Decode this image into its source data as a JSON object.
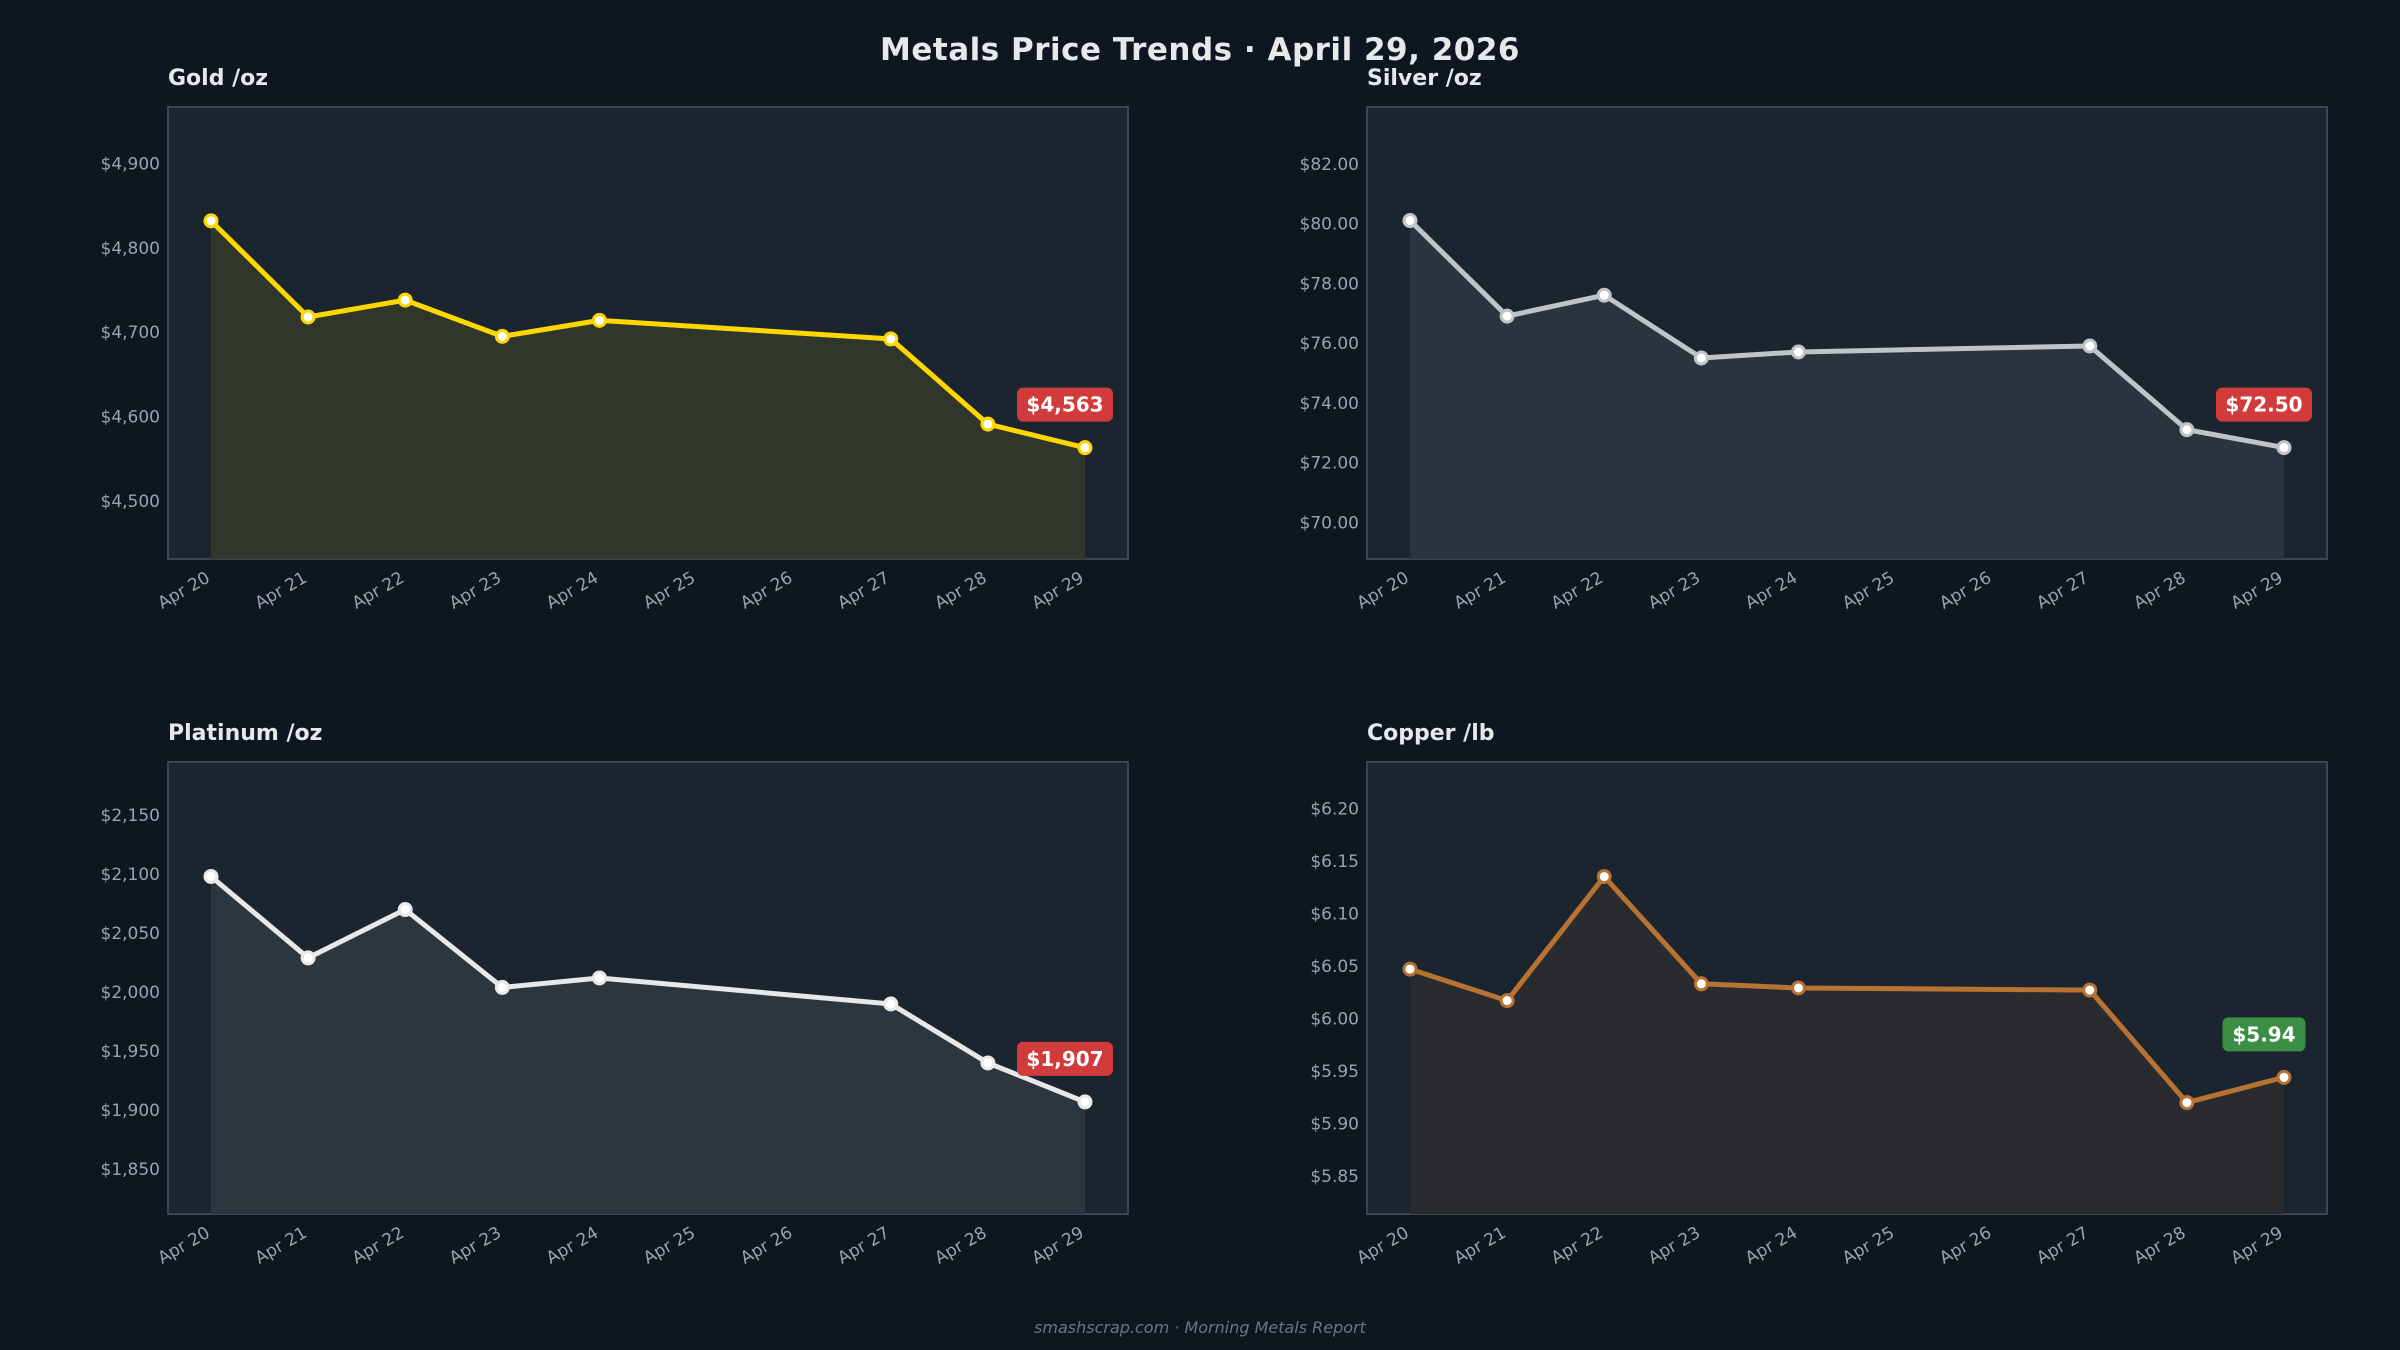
{
  "header": {
    "title": "Metals Price Trends  ·  April 29, 2026"
  },
  "footer": {
    "text": "smashscrap.com  ·  Morning Metals Report"
  },
  "chart_data": [
    {
      "type": "line",
      "title": "Gold  /oz",
      "x_ticks": [
        "Apr 20",
        "Apr 21",
        "Apr 22",
        "Apr 23",
        "Apr 24",
        "Apr 25",
        "Apr 26",
        "Apr 27",
        "Apr 28",
        "Apr 29"
      ],
      "x": [
        "Apr 20",
        "Apr 21",
        "Apr 22",
        "Apr 23",
        "Apr 24",
        "Apr 27",
        "Apr 28",
        "Apr 29"
      ],
      "values": [
        4832,
        4718,
        4738,
        4695,
        4714,
        4692,
        4591,
        4563
      ],
      "y_ticks": [
        4500,
        4600,
        4700,
        4800,
        4900
      ],
      "y_tick_labels": [
        "$4,500",
        "$4,600",
        "$4,700",
        "$4,800",
        "$4,900"
      ],
      "ylim": [
        4431,
        4967
      ],
      "badge": "$4,563",
      "badge_color": "#d13b3b",
      "line_color": "#ffd700",
      "fill_color": "#32382a",
      "marker_fill": "#ffffff"
    },
    {
      "type": "line",
      "title": "Silver  /oz",
      "x_ticks": [
        "Apr 20",
        "Apr 21",
        "Apr 22",
        "Apr 23",
        "Apr 24",
        "Apr 25",
        "Apr 26",
        "Apr 27",
        "Apr 28",
        "Apr 29"
      ],
      "x": [
        "Apr 20",
        "Apr 21",
        "Apr 22",
        "Apr 23",
        "Apr 24",
        "Apr 27",
        "Apr 28",
        "Apr 29"
      ],
      "values": [
        80.1,
        76.9,
        77.6,
        75.5,
        75.7,
        75.9,
        73.1,
        72.5
      ],
      "y_ticks": [
        70,
        72,
        74,
        76,
        78,
        80,
        82
      ],
      "y_tick_labels": [
        "$70.00",
        "$72.00",
        "$74.00",
        "$76.00",
        "$78.00",
        "$80.00",
        "$82.00"
      ],
      "ylim": [
        68.77,
        83.9
      ],
      "badge": "$72.50",
      "badge_color": "#d13b3b",
      "line_color": "#c0c4c8",
      "fill_color": "#2a3540",
      "marker_fill": "#ffffff"
    },
    {
      "type": "line",
      "title": "Platinum  /oz",
      "x_ticks": [
        "Apr 20",
        "Apr 21",
        "Apr 22",
        "Apr 23",
        "Apr 24",
        "Apr 25",
        "Apr 26",
        "Apr 27",
        "Apr 28",
        "Apr 29"
      ],
      "x": [
        "Apr 20",
        "Apr 21",
        "Apr 22",
        "Apr 23",
        "Apr 24",
        "Apr 27",
        "Apr 28",
        "Apr 29"
      ],
      "values": [
        2098,
        2029,
        2070,
        2004,
        2012,
        1990,
        1940,
        1907
      ],
      "y_ticks": [
        1850,
        1900,
        1950,
        2000,
        2050,
        2100,
        2150
      ],
      "y_tick_labels": [
        "$1,850",
        "$1,900",
        "$1,950",
        "$2,000",
        "$2,050",
        "$2,100",
        "$2,150"
      ],
      "ylim": [
        1812,
        2195
      ],
      "badge": "$1,907",
      "badge_color": "#d13b3b",
      "line_color": "#e8e8e8",
      "fill_color": "#2c3740",
      "marker_fill": "#ffffff"
    },
    {
      "type": "line",
      "title": "Copper  /lb",
      "x_ticks": [
        "Apr 20",
        "Apr 21",
        "Apr 22",
        "Apr 23",
        "Apr 24",
        "Apr 25",
        "Apr 26",
        "Apr 27",
        "Apr 28",
        "Apr 29"
      ],
      "x": [
        "Apr 20",
        "Apr 21",
        "Apr 22",
        "Apr 23",
        "Apr 24",
        "Apr 27",
        "Apr 28",
        "Apr 29"
      ],
      "values": [
        6.047,
        6.017,
        6.135,
        6.033,
        6.029,
        6.027,
        5.92,
        5.944
      ],
      "y_ticks": [
        5.85,
        5.9,
        5.95,
        6.0,
        6.05,
        6.1,
        6.15,
        6.2
      ],
      "y_tick_labels": [
        "$5.85",
        "$5.90",
        "$5.95",
        "$6.00",
        "$6.05",
        "$6.10",
        "$6.15",
        "$6.20"
      ],
      "ylim": [
        5.814,
        6.244
      ],
      "badge": "$5.94",
      "badge_color": "#3a8f45",
      "line_color": "#b87333",
      "fill_color": "#2a2b2e",
      "marker_fill": "#ffffff"
    }
  ]
}
